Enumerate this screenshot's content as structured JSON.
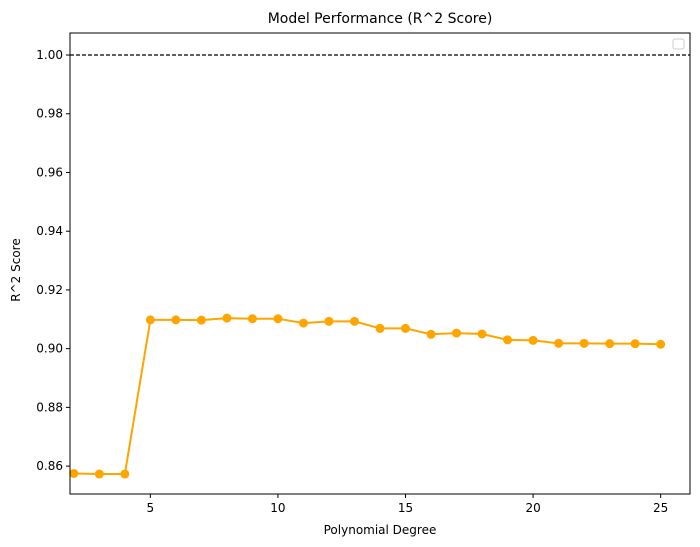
{
  "chart_data": {
    "type": "line",
    "title": "Model Performance (R^2 Score)",
    "xlabel": "Polynomial Degree",
    "ylabel": "R^2 Score",
    "xlim": [
      1.85,
      26.15
    ],
    "ylim": [
      0.8505,
      1.0075
    ],
    "xticks": [
      5,
      10,
      15,
      20,
      25
    ],
    "yticks": [
      0.86,
      0.88,
      0.9,
      0.92,
      0.94,
      0.96,
      0.98,
      1.0
    ],
    "ytick_labels": [
      "0.86",
      "0.88",
      "0.90",
      "0.92",
      "0.94",
      "0.96",
      "0.98",
      "1.00"
    ],
    "grid": false,
    "legend": "upper right (empty)",
    "reference_line": {
      "y": 1.0,
      "style": "dashed",
      "color": "#000000"
    },
    "series": [
      {
        "color": "#ffa500",
        "marker": "circle",
        "x": [
          2,
          3,
          4,
          5,
          6,
          7,
          8,
          9,
          10,
          11,
          12,
          13,
          14,
          15,
          16,
          17,
          18,
          19,
          20,
          21,
          22,
          23,
          24,
          25
        ],
        "y": [
          0.8575,
          0.8573,
          0.8573,
          0.9098,
          0.9098,
          0.9097,
          0.9104,
          0.9102,
          0.9102,
          0.9087,
          0.9093,
          0.9093,
          0.9069,
          0.9069,
          0.9049,
          0.9053,
          0.905,
          0.903,
          0.9028,
          0.9018,
          0.9018,
          0.9017,
          0.9017,
          0.9015
        ]
      }
    ]
  }
}
